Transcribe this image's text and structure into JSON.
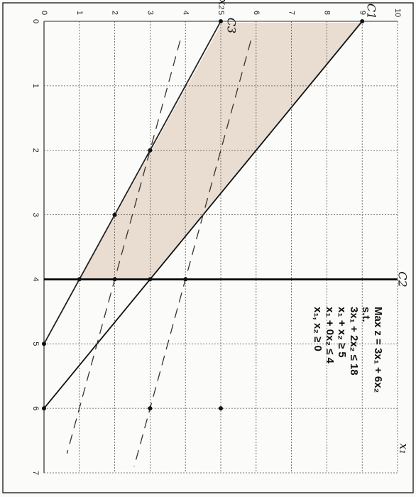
{
  "chart_data": {
    "type": "line",
    "xlabel": "x₁",
    "ylabel": "x₂",
    "xlim": [
      0,
      7
    ],
    "ylim": [
      0,
      10
    ],
    "xticks": [
      0,
      1,
      2,
      3,
      4,
      5,
      6,
      7
    ],
    "yticks": [
      0,
      1,
      2,
      3,
      4,
      5,
      6,
      7,
      8,
      9,
      10
    ],
    "grid": true,
    "series": [
      {
        "name": "C1",
        "color": "#111111",
        "x": [
          0,
          6
        ],
        "values": [
          9,
          0
        ]
      },
      {
        "name": "C2",
        "color": "#000000",
        "x": [
          4,
          4
        ],
        "values": [
          0,
          10
        ]
      },
      {
        "name": "C3",
        "color": "#222222",
        "x": [
          0,
          5
        ],
        "values": [
          5,
          0
        ]
      },
      {
        "color": "#333333",
        "dash": true,
        "x": [
          0.3,
          6.9
        ],
        "values": [
          5.85,
          2.55
        ]
      },
      {
        "color": "#333333",
        "dash": true,
        "x": [
          0.3,
          6.7
        ],
        "values": [
          3.85,
          0.65
        ]
      }
    ],
    "points": {
      "x": [
        0,
        0,
        2,
        3,
        4,
        4,
        4,
        4,
        5,
        6,
        6,
        6
      ],
      "y": [
        5,
        9,
        3,
        2,
        1,
        2,
        3,
        4,
        0,
        0,
        3,
        5
      ]
    },
    "annotations": [
      "Max z = 3x₁ + 6x₂",
      "s.t.",
      "3x₁ + 2x₂ ≤ 18",
      "x₁ + x₂ ≥ 5",
      "x₁ + 0x₂ ≤ 4",
      "x₁, x₂ ≥ 0"
    ]
  }
}
